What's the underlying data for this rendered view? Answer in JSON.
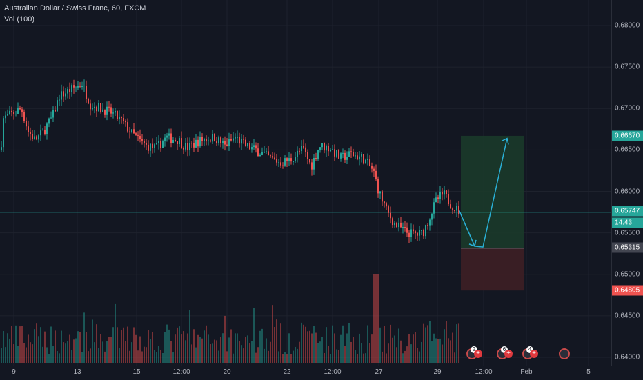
{
  "legend": {
    "title": "Australian Dollar / Swiss Franc, 60, FXCM",
    "indicator": "Vol (100)"
  },
  "price_axis": {
    "ticks": [
      "0.68000",
      "0.67500",
      "0.67000",
      "0.66500",
      "0.66000",
      "0.65500",
      "0.65000",
      "0.64500",
      "0.64000"
    ],
    "target_tag": "0.66670",
    "current_tag": "0.65747",
    "countdown": "14:43",
    "entry_tag": "0.65315",
    "stop_tag": "0.64805"
  },
  "time_axis": {
    "ticks": [
      "9",
      "13",
      "15",
      "12:00",
      "20",
      "22",
      "12:00",
      "27",
      "29",
      "12:00",
      "Feb",
      "5"
    ]
  },
  "events": [
    {
      "badge": "2"
    },
    {
      "badge": "6"
    },
    {
      "badge": "4"
    },
    {
      "badge": ""
    }
  ],
  "colors": {
    "background": "#131722",
    "up": "#26a69a",
    "down": "#ef5350",
    "target_zone": "#1b3a2a",
    "stop_zone": "#3e1f25",
    "arrow": "#2ab0d6",
    "current_tag": "#26a69a",
    "target_tag_bg": "#26a69a",
    "stop_tag_bg": "#ef5350",
    "entry_tag_bg": "#434651"
  },
  "chart_data": {
    "type": "candlestick",
    "symbol": "AUDCHF",
    "interval": "60",
    "ylim": [
      0.6395,
      0.6835
    ],
    "price_path": [
      [
        0,
        0.665
      ],
      [
        4,
        0.6688
      ],
      [
        20,
        0.6695
      ],
      [
        30,
        0.67
      ],
      [
        40,
        0.6672
      ],
      [
        50,
        0.6662
      ],
      [
        60,
        0.667
      ],
      [
        75,
        0.669
      ],
      [
        85,
        0.6715
      ],
      [
        100,
        0.6722
      ],
      [
        118,
        0.673
      ],
      [
        130,
        0.6705
      ],
      [
        145,
        0.67
      ],
      [
        160,
        0.6695
      ],
      [
        175,
        0.6685
      ],
      [
        190,
        0.667
      ],
      [
        210,
        0.6655
      ],
      [
        225,
        0.6652
      ],
      [
        240,
        0.6665
      ],
      [
        258,
        0.6662
      ],
      [
        270,
        0.6652
      ],
      [
        290,
        0.6662
      ],
      [
        310,
        0.6665
      ],
      [
        325,
        0.6655
      ],
      [
        340,
        0.6665
      ],
      [
        355,
        0.6655
      ],
      [
        370,
        0.665
      ],
      [
        390,
        0.664
      ],
      [
        405,
        0.6635
      ],
      [
        420,
        0.6638
      ],
      [
        438,
        0.6652
      ],
      [
        450,
        0.663
      ],
      [
        462,
        0.6655
      ],
      [
        478,
        0.6652
      ],
      [
        492,
        0.664
      ],
      [
        508,
        0.6645
      ],
      [
        525,
        0.664
      ],
      [
        540,
        0.6625
      ],
      [
        548,
        0.66
      ],
      [
        560,
        0.6575
      ],
      [
        572,
        0.656
      ],
      [
        590,
        0.655
      ],
      [
        605,
        0.6548
      ],
      [
        612,
        0.655
      ],
      [
        622,
        0.657
      ],
      [
        632,
        0.659
      ],
      [
        642,
        0.6597
      ],
      [
        652,
        0.6585
      ],
      [
        665,
        0.6575
      ]
    ],
    "volume_max": 0.64,
    "position": {
      "type": "long",
      "entry": 0.65315,
      "target": 0.6667,
      "stop": 0.64805,
      "current": 0.65747
    },
    "projection": [
      [
        665,
        0.6578
      ],
      [
        688,
        0.6534
      ],
      [
        700,
        0.6533
      ],
      [
        735,
        0.6664
      ]
    ]
  }
}
